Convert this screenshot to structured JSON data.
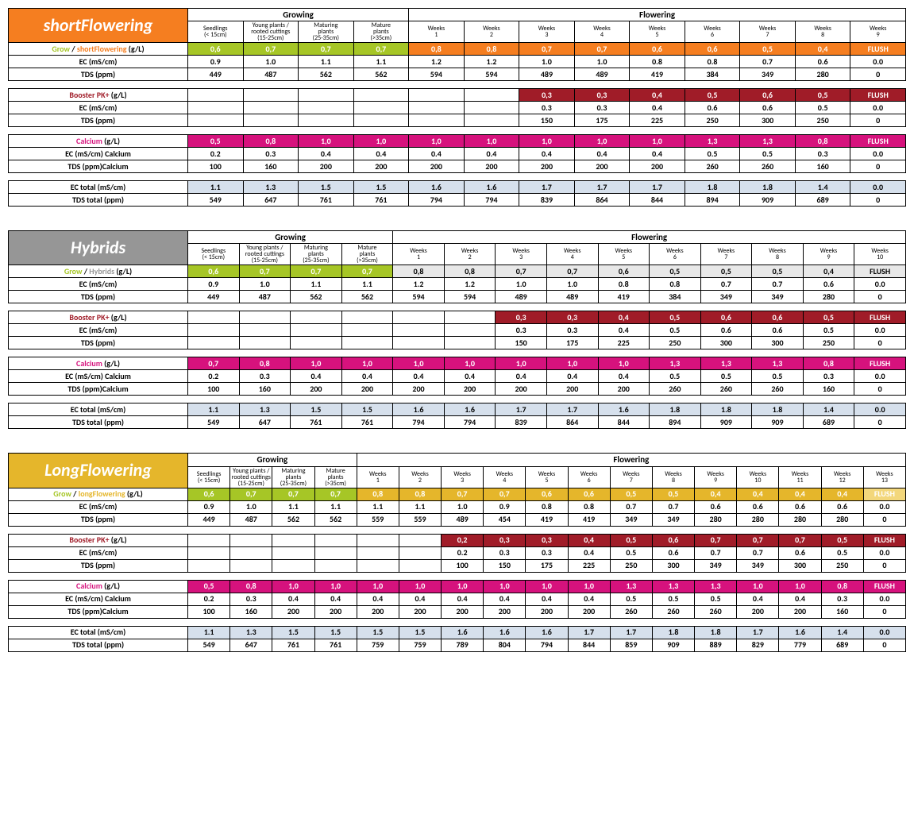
{
  "colors": {
    "orange": "#f57e20",
    "gray": "#969696",
    "yellow": "#e5b62b",
    "green": "#a6c626",
    "darkred": "#a01c28",
    "magenta": "#d6127d",
    "lightblue": "#d6e0ec",
    "lightgray": "#e8e8e8",
    "flushyellow": "#f3d77b"
  },
  "common": {
    "growing": "Growing",
    "flowering": "Flowering",
    "flush": "FLUSH",
    "stages": [
      "Seedlings\n(< 15cm)",
      "Young plants /\nrooted cuttings\n(15-25cm)",
      "Maturing\nplants\n(25-35cm)",
      "Mature\nplants\n(>35cm)"
    ],
    "ec_label": "EC (mS/cm)",
    "tds_label": "TDS (ppm)",
    "booster_label_pre": "Booster PK+",
    "calcium_label_pre": "Calcium",
    "gl_suffix": " (g/L)",
    "ec_cal": "EC (mS/cm) Calcium",
    "tds_cal": "TDS (ppm)Calcium",
    "ec_total": "EC total (mS/cm)",
    "tds_total": "TDS total (ppm)",
    "grow_pre": "Grow",
    "slash": " / "
  },
  "charts": [
    {
      "title": "shortFlowering",
      "title_color": "#f57e20",
      "variant_label": "shortFlowering",
      "variant_color": "#f57e20",
      "flowering_weeks": 9,
      "grow_flower_bg": "#f57e20",
      "flush_bg_grow": "#f57e20",
      "rows": {
        "grow": [
          "0,6",
          "0,7",
          "0,7",
          "0,7",
          "0,8",
          "0,8",
          "0,7",
          "0,7",
          "0,6",
          "0,6",
          "0,5",
          "0,4",
          "FLUSH"
        ],
        "ec": [
          "0.9",
          "1.0",
          "1.1",
          "1.1",
          "1.2",
          "1.2",
          "1.0",
          "1.0",
          "0.8",
          "0.8",
          "0.7",
          "0.6",
          "0.0"
        ],
        "tds": [
          "449",
          "487",
          "562",
          "562",
          "594",
          "594",
          "489",
          "489",
          "419",
          "384",
          "349",
          "280",
          "0"
        ],
        "booster": [
          "",
          "",
          "",
          "",
          "",
          "",
          "0,3",
          "0,3",
          "0,4",
          "0,5",
          "0,6",
          "0,5",
          "FLUSH"
        ],
        "b_ec": [
          "",
          "",
          "",
          "",
          "",
          "",
          "0.3",
          "0.3",
          "0.4",
          "0.6",
          "0.6",
          "0.5",
          "0.0"
        ],
        "b_tds": [
          "",
          "",
          "",
          "",
          "",
          "",
          "150",
          "175",
          "225",
          "250",
          "300",
          "250",
          "0"
        ],
        "calcium": [
          "0,5",
          "0,8",
          "1,0",
          "1,0",
          "1,0",
          "1,0",
          "1,0",
          "1,0",
          "1,0",
          "1,3",
          "1,3",
          "0,8",
          "FLUSH"
        ],
        "c_ec": [
          "0.2",
          "0.3",
          "0.4",
          "0.4",
          "0.4",
          "0.4",
          "0.4",
          "0.4",
          "0.4",
          "0.5",
          "0.5",
          "0.3",
          "0.0"
        ],
        "c_tds": [
          "100",
          "160",
          "200",
          "200",
          "200",
          "200",
          "200",
          "200",
          "200",
          "260",
          "260",
          "160",
          "0"
        ],
        "ec_total": [
          "1.1",
          "1.3",
          "1.5",
          "1.5",
          "1.6",
          "1.6",
          "1.7",
          "1.7",
          "1.7",
          "1.8",
          "1.8",
          "1.4",
          "0.0"
        ],
        "tds_total": [
          "549",
          "647",
          "761",
          "761",
          "794",
          "794",
          "839",
          "864",
          "844",
          "894",
          "909",
          "689",
          "0"
        ]
      }
    },
    {
      "title": "Hybrids",
      "title_color": "#969696",
      "variant_label": "Hybrids",
      "variant_color": "#969696",
      "flowering_weeks": 10,
      "grow_flower_bg": "#e8e8e8",
      "grow_flower_text_dark": true,
      "flush_bg_grow": "#e8e8e8",
      "rows": {
        "grow": [
          "0,6",
          "0,7",
          "0,7",
          "0,7",
          "0,8",
          "0,8",
          "0,7",
          "0,7",
          "0,6",
          "0,5",
          "0,5",
          "0,5",
          "0,4",
          "FLUSH"
        ],
        "ec": [
          "0.9",
          "1.0",
          "1.1",
          "1.1",
          "1.2",
          "1.2",
          "1.0",
          "1.0",
          "0.8",
          "0.8",
          "0.7",
          "0.7",
          "0.6",
          "0.0"
        ],
        "tds": [
          "449",
          "487",
          "562",
          "562",
          "594",
          "594",
          "489",
          "489",
          "419",
          "384",
          "349",
          "349",
          "280",
          "0"
        ],
        "booster": [
          "",
          "",
          "",
          "",
          "",
          "",
          "0,3",
          "0,3",
          "0,4",
          "0,5",
          "0,6",
          "0,6",
          "0,5",
          "FLUSH"
        ],
        "b_ec": [
          "",
          "",
          "",
          "",
          "",
          "",
          "0.3",
          "0.3",
          "0.4",
          "0.5",
          "0.6",
          "0.6",
          "0.5",
          "0.0"
        ],
        "b_tds": [
          "",
          "",
          "",
          "",
          "",
          "",
          "150",
          "175",
          "225",
          "250",
          "300",
          "300",
          "250",
          "0"
        ],
        "calcium": [
          "0,7",
          "0,8",
          "1,0",
          "1,0",
          "1,0",
          "1,0",
          "1,0",
          "1,0",
          "1,0",
          "1,3",
          "1,3",
          "1,3",
          "0,8",
          "FLUSH"
        ],
        "c_ec": [
          "0.2",
          "0.3",
          "0.4",
          "0.4",
          "0.4",
          "0.4",
          "0.4",
          "0.4",
          "0.4",
          "0.5",
          "0.5",
          "0.5",
          "0.3",
          "0.0"
        ],
        "c_tds": [
          "100",
          "160",
          "200",
          "200",
          "200",
          "200",
          "200",
          "200",
          "200",
          "260",
          "260",
          "260",
          "160",
          "0"
        ],
        "ec_total": [
          "1.1",
          "1.3",
          "1.5",
          "1.5",
          "1.6",
          "1.6",
          "1.7",
          "1.7",
          "1.6",
          "1.8",
          "1.8",
          "1.8",
          "1.4",
          "0.0"
        ],
        "tds_total": [
          "549",
          "647",
          "761",
          "761",
          "794",
          "794",
          "839",
          "864",
          "844",
          "894",
          "909",
          "909",
          "689",
          "0"
        ]
      }
    },
    {
      "title": "LongFlowering",
      "title_color": "#e5b62b",
      "variant_label": "longFlowering",
      "variant_color": "#e5b62b",
      "flowering_weeks": 13,
      "grow_flower_bg": "#e5b62b",
      "flush_bg_grow": "#f3d77b",
      "rows": {
        "grow": [
          "0,6",
          "0,7",
          "0,7",
          "0,7",
          "0,8",
          "0,8",
          "0,7",
          "0,7",
          "0,6",
          "0,6",
          "0,5",
          "0,5",
          "0,4",
          "0,4",
          "0,4",
          "0,4",
          "FLUSH"
        ],
        "ec": [
          "0.9",
          "1.0",
          "1.1",
          "1.1",
          "1.1",
          "1.1",
          "1.0",
          "0.9",
          "0.8",
          "0.8",
          "0.7",
          "0.7",
          "0.6",
          "0.6",
          "0.6",
          "0.6",
          "0.0"
        ],
        "tds": [
          "449",
          "487",
          "562",
          "562",
          "559",
          "559",
          "489",
          "454",
          "419",
          "419",
          "349",
          "349",
          "280",
          "280",
          "280",
          "280",
          "0"
        ],
        "booster": [
          "",
          "",
          "",
          "",
          "",
          "",
          "0,2",
          "0,3",
          "0,3",
          "0,4",
          "0,5",
          "0,6",
          "0,7",
          "0,7",
          "0,7",
          "0,5",
          "FLUSH"
        ],
        "b_ec": [
          "",
          "",
          "",
          "",
          "",
          "",
          "0.2",
          "0.3",
          "0.3",
          "0.4",
          "0.5",
          "0.6",
          "0.7",
          "0.7",
          "0.6",
          "0.5",
          "0.0"
        ],
        "b_tds": [
          "",
          "",
          "",
          "",
          "",
          "",
          "100",
          "150",
          "175",
          "225",
          "250",
          "300",
          "349",
          "349",
          "300",
          "250",
          "0"
        ],
        "calcium": [
          "0,5",
          "0,8",
          "1,0",
          "1,0",
          "1,0",
          "1,0",
          "1,0",
          "1,0",
          "1,0",
          "1,0",
          "1,3",
          "1,3",
          "1,3",
          "1,0",
          "1,0",
          "0,8",
          "FLUSH"
        ],
        "c_ec": [
          "0.2",
          "0.3",
          "0.4",
          "0.4",
          "0.4",
          "0.4",
          "0.4",
          "0.4",
          "0.4",
          "0.4",
          "0.5",
          "0.5",
          "0.5",
          "0.4",
          "0.4",
          "0.3",
          "0.0"
        ],
        "c_tds": [
          "100",
          "160",
          "200",
          "200",
          "200",
          "200",
          "200",
          "200",
          "200",
          "200",
          "260",
          "260",
          "260",
          "200",
          "200",
          "160",
          "0"
        ],
        "ec_total": [
          "1.1",
          "1.3",
          "1.5",
          "1.5",
          "1.5",
          "1.5",
          "1.6",
          "1.6",
          "1.6",
          "1.7",
          "1.7",
          "1.8",
          "1.8",
          "1.7",
          "1.6",
          "1.4",
          "0.0"
        ],
        "tds_total": [
          "549",
          "647",
          "761",
          "761",
          "759",
          "759",
          "789",
          "804",
          "794",
          "844",
          "859",
          "909",
          "889",
          "829",
          "779",
          "689",
          "0"
        ]
      }
    }
  ]
}
